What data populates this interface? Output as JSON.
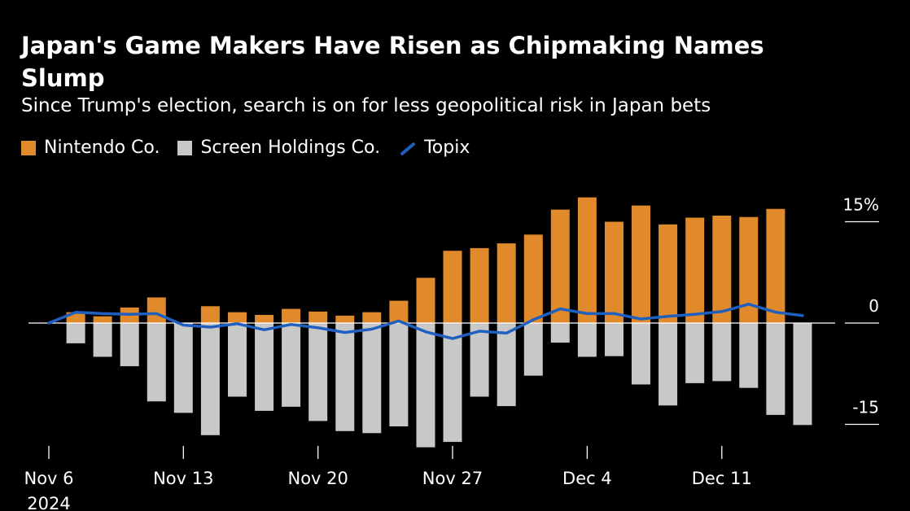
{
  "header": {
    "title": "Japan's Game Makers Have Risen as Chipmaking Names Slump",
    "subtitle": "Since Trump's election, search is on for less geopolitical risk in Japan bets"
  },
  "legend": {
    "items": [
      {
        "label": "Nintendo Co.",
        "color": "#e08a2b",
        "kind": "bar"
      },
      {
        "label": "Screen Holdings Co.",
        "color": "#c8c8c8",
        "kind": "bar"
      },
      {
        "label": "Topix",
        "color": "#1f5fbf",
        "kind": "line"
      }
    ]
  },
  "chart_data": {
    "type": "bar",
    "title": "Japan's Game Makers Have Risen as Chipmaking Names Slump",
    "subtitle": "Since Trump's election, search is on for less geopolitical risk in Japan bets",
    "xlabel": "",
    "ylabel": "",
    "ylim": [
      -15,
      15
    ],
    "y_ticks": [
      {
        "value": 15,
        "label": "15%"
      },
      {
        "value": 0,
        "label": "0"
      },
      {
        "value": -15,
        "label": "-15"
      }
    ],
    "x_ticks": [
      {
        "index": 0,
        "label": "Nov 6",
        "sublabel": "2024"
      },
      {
        "index": 5,
        "label": "Nov 13"
      },
      {
        "index": 10,
        "label": "Nov 20"
      },
      {
        "index": 15,
        "label": "Nov 27"
      },
      {
        "index": 20,
        "label": "Dec 4"
      },
      {
        "index": 25,
        "label": "Dec 11"
      }
    ],
    "categories": [
      "Nov 6",
      "Nov 7",
      "Nov 8",
      "Nov 11",
      "Nov 12",
      "Nov 13",
      "Nov 14",
      "Nov 15",
      "Nov 18",
      "Nov 19",
      "Nov 20",
      "Nov 21",
      "Nov 22",
      "Nov 25",
      "Nov 26",
      "Nov 27",
      "Nov 28",
      "Nov 29",
      "Dec 2",
      "Dec 3",
      "Dec 4",
      "Dec 5",
      "Dec 6",
      "Dec 9",
      "Dec 10",
      "Dec 11",
      "Dec 12",
      "Dec 13",
      "Dec 16"
    ],
    "series": [
      {
        "name": "Nintendo Co.",
        "kind": "bar",
        "color": "#e08a2b",
        "values": [
          0,
          1.6,
          1.0,
          2.3,
          3.8,
          0,
          2.5,
          1.6,
          1.2,
          2.1,
          1.7,
          1.1,
          1.6,
          3.3,
          6.7,
          10.7,
          11.1,
          11.8,
          13.1,
          16.8,
          18.6,
          15.0,
          17.4,
          14.6,
          15.6,
          15.9,
          15.7,
          16.9,
          0
        ]
      },
      {
        "name": "Screen Holdings Co.",
        "kind": "bar",
        "color": "#c8c8c8",
        "values": [
          0,
          -3.0,
          -5.0,
          -6.4,
          -11.6,
          -13.3,
          -16.6,
          -10.9,
          -13.0,
          -12.4,
          -14.5,
          -16.0,
          -16.3,
          -15.3,
          -18.4,
          -17.6,
          -10.9,
          -12.3,
          -7.8,
          -2.9,
          -5.0,
          -4.9,
          -9.1,
          -12.2,
          -8.9,
          -8.6,
          -9.6,
          -13.6,
          -15.1
        ]
      },
      {
        "name": "Topix",
        "kind": "line",
        "color": "#1f5fbf",
        "values": [
          0,
          1.6,
          1.4,
          1.3,
          1.4,
          -0.3,
          -0.6,
          -0.1,
          -1.0,
          -0.2,
          -0.7,
          -1.4,
          -0.9,
          0.3,
          -1.3,
          -2.3,
          -1.2,
          -1.5,
          0.5,
          2.1,
          1.4,
          1.4,
          0.6,
          1.0,
          1.3,
          1.7,
          2.8,
          1.6,
          1.1
        ]
      }
    ]
  }
}
